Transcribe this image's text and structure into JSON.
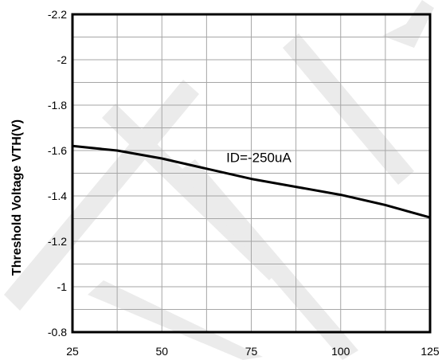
{
  "chart_data": {
    "type": "line",
    "title": "",
    "xlabel": "",
    "ylabel": "Threshold Voltage VTH(V)",
    "xlim": [
      25,
      125
    ],
    "ylim": [
      -0.8,
      -2.2
    ],
    "y_axis_reversed": true,
    "grid": true,
    "x_ticks": [
      25,
      50,
      75,
      100,
      125
    ],
    "y_ticks": [
      -2.2,
      -2,
      -1.8,
      -1.6,
      -1.4,
      -1.2,
      -1,
      -0.8
    ],
    "x_tick_labels": [
      "25",
      "50",
      "75",
      "100",
      "125"
    ],
    "y_tick_labels": [
      "-2.2",
      "-2",
      "-1.8",
      "-1.6",
      "-1.4",
      "-1.2",
      "-1",
      "-0.8"
    ],
    "series": [
      {
        "x": [
          25,
          37.5,
          50,
          62.5,
          75,
          87.5,
          100,
          112.5,
          125
        ],
        "y": [
          -1.62,
          -1.6,
          -1.565,
          -1.52,
          -1.475,
          -1.44,
          -1.405,
          -1.36,
          -1.305
        ]
      }
    ],
    "annotations": [
      {
        "text": "ID=-250uA",
        "x": 68,
        "y": -1.57
      }
    ],
    "colors": {
      "line": "#000000",
      "grid": "#a6a6a6",
      "frame": "#000000",
      "watermark": "#ebebeb"
    }
  }
}
